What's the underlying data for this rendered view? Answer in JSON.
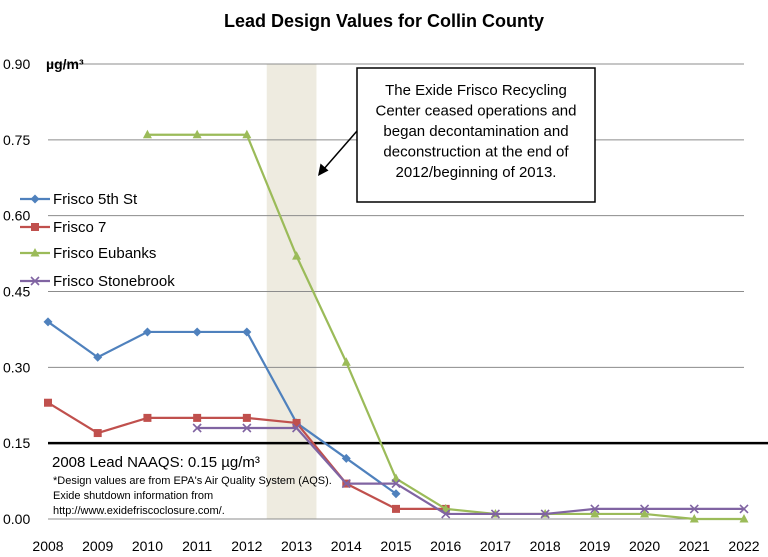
{
  "chart_data": {
    "type": "line",
    "title": "Lead Design Values for Collin County",
    "ylabel": "µg/m³",
    "xlabel": "",
    "categories": [
      "2008",
      "2009",
      "2010",
      "2011",
      "2012",
      "2013",
      "2014",
      "2015",
      "2016",
      "2017",
      "2018",
      "2019",
      "2020",
      "2021",
      "2022"
    ],
    "ylim": [
      0,
      0.9
    ],
    "yticks": [
      "0.00",
      "0.15",
      "0.30",
      "0.45",
      "0.60",
      "0.75",
      "0.90"
    ],
    "grid": true,
    "legend_position": "left",
    "series": [
      {
        "name": "Frisco 5th St",
        "color": "#4F81BD",
        "marker": "diamond",
        "values": [
          0.39,
          0.32,
          0.37,
          0.37,
          0.37,
          0.19,
          0.12,
          0.05,
          null,
          null,
          null,
          null,
          null,
          null,
          null
        ]
      },
      {
        "name": "Frisco 7",
        "color": "#C0504D",
        "marker": "square",
        "values": [
          0.23,
          0.17,
          0.2,
          0.2,
          0.2,
          0.19,
          0.07,
          0.02,
          0.02,
          null,
          null,
          null,
          null,
          null,
          null
        ]
      },
      {
        "name": "Frisco Eubanks",
        "color": "#9BBB59",
        "marker": "triangle",
        "values": [
          null,
          null,
          0.76,
          0.76,
          0.76,
          0.52,
          0.31,
          0.08,
          0.02,
          0.01,
          0.01,
          0.01,
          0.01,
          0.0,
          0.0
        ]
      },
      {
        "name": "Frisco Stonebrook",
        "color": "#8064A2",
        "marker": "x",
        "values": [
          null,
          null,
          null,
          0.18,
          0.18,
          0.18,
          0.07,
          0.07,
          0.01,
          0.01,
          0.01,
          0.02,
          0.02,
          0.02,
          0.02
        ]
      }
    ],
    "reference_line": {
      "value": 0.15,
      "label": "2008 Lead NAAQS: 0.15 µg/m³",
      "color": "#000000"
    },
    "shaded_band": {
      "from_year": 2012.4,
      "to_year": 2013.4,
      "color": "#EEEBE0"
    },
    "annotation": {
      "lines": [
        "The Exide Frisco Recycling",
        "Center ceased operations and",
        "began decontamination and",
        "deconstruction at the end of",
        "2012/beginning of 2013."
      ]
    },
    "notes": [
      "*Design values are from EPA's Air Quality System (AQS).",
      "Exide shutdown information from",
      "http://www.exidefriscoclosure.com/."
    ]
  }
}
